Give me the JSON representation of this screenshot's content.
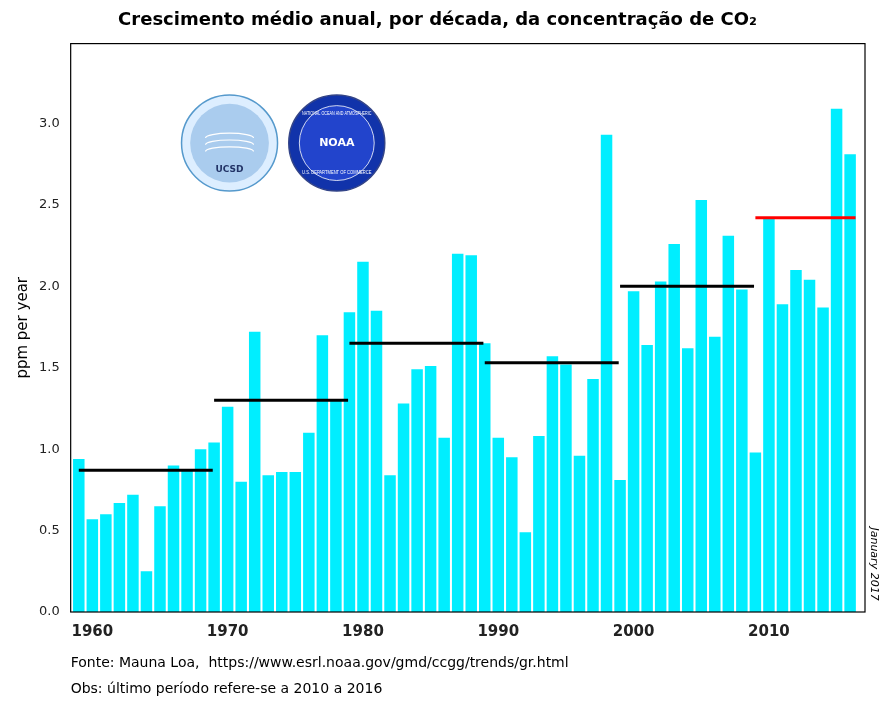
{
  "chart_data": {
    "type": "bar",
    "title": "Crescimento médio anual, por década, da concentração de CO₂",
    "ylabel": "ppm per year",
    "x": [
      1959,
      1960,
      1961,
      1962,
      1963,
      1964,
      1965,
      1966,
      1967,
      1968,
      1969,
      1970,
      1971,
      1972,
      1973,
      1974,
      1975,
      1976,
      1977,
      1978,
      1979,
      1980,
      1981,
      1982,
      1983,
      1984,
      1985,
      1986,
      1987,
      1988,
      1989,
      1990,
      1991,
      1992,
      1993,
      1994,
      1995,
      1996,
      1997,
      1998,
      1999,
      2000,
      2001,
      2002,
      2003,
      2004,
      2005,
      2006,
      2007,
      2008,
      2009,
      2010,
      2011,
      2012,
      2013,
      2014,
      2015,
      2016
    ],
    "series": [
      {
        "type": "bar",
        "color": "#00EEFF",
        "values": [
          0.94,
          0.57,
          0.6,
          0.67,
          0.72,
          0.25,
          0.65,
          0.9,
          0.87,
          1.0,
          1.04,
          1.26,
          0.8,
          1.72,
          0.84,
          0.86,
          0.86,
          1.1,
          1.7,
          1.3,
          1.84,
          2.15,
          1.85,
          0.84,
          1.28,
          1.49,
          1.51,
          1.07,
          2.2,
          2.19,
          1.65,
          1.07,
          0.95,
          0.49,
          1.08,
          1.57,
          1.52,
          0.96,
          1.43,
          2.93,
          0.81,
          1.97,
          1.64,
          2.03,
          2.26,
          1.62,
          2.53,
          1.69,
          2.31,
          1.98,
          0.98,
          2.42,
          1.89,
          2.1,
          2.04,
          1.87,
          3.09,
          2.81
        ]
      },
      {
        "type": "line",
        "color": "black",
        "x": [
          1959.0,
          1968.9
        ],
        "values": [
          0.87,
          0.87
        ]
      },
      {
        "type": "line",
        "color": "black",
        "x": [
          1969.0,
          1978.9
        ],
        "values": [
          1.3,
          1.3
        ]
      },
      {
        "type": "line",
        "color": "black",
        "x": [
          1979.0,
          1988.9
        ],
        "values": [
          1.65,
          1.65
        ]
      },
      {
        "type": "line",
        "color": "black",
        "x": [
          1989.0,
          1998.9
        ],
        "values": [
          1.53,
          1.53
        ]
      },
      {
        "type": "line",
        "color": "black",
        "x": [
          1999.0,
          2008.9
        ],
        "values": [
          2.0,
          2.0
        ]
      },
      {
        "type": "line",
        "color": "red",
        "x": [
          2009.0,
          2016.4
        ],
        "values": [
          2.42,
          2.42
        ]
      }
    ],
    "xlim": [
      1958.4,
      2017.1
    ],
    "xticks": [
      1960,
      1970,
      1980,
      1990,
      2000,
      2010
    ],
    "ylim": [
      0,
      3.49
    ],
    "yticks": [
      {
        "value": 0,
        "label": "0.0"
      },
      0.5,
      {
        "value": 1,
        "label": "1.0"
      },
      1.5,
      {
        "value": 2,
        "label": "2.0"
      },
      2.5,
      {
        "value": 3,
        "label": "3.0"
      }
    ],
    "grid": false,
    "annotations": [
      "Fonte: Mauna Loa,  https://www.esrl.noaa.gov/gmd/ccgg/trends/gr.html",
      "Obs: último período refere-se a 2010 a 2016",
      "January 2017",
      "UCSD",
      "NOAA",
      "NATIONAL OCEAN AND ATMOSPHERIC",
      "U.S. DEPARTMENT OF COMMERCE"
    ]
  }
}
